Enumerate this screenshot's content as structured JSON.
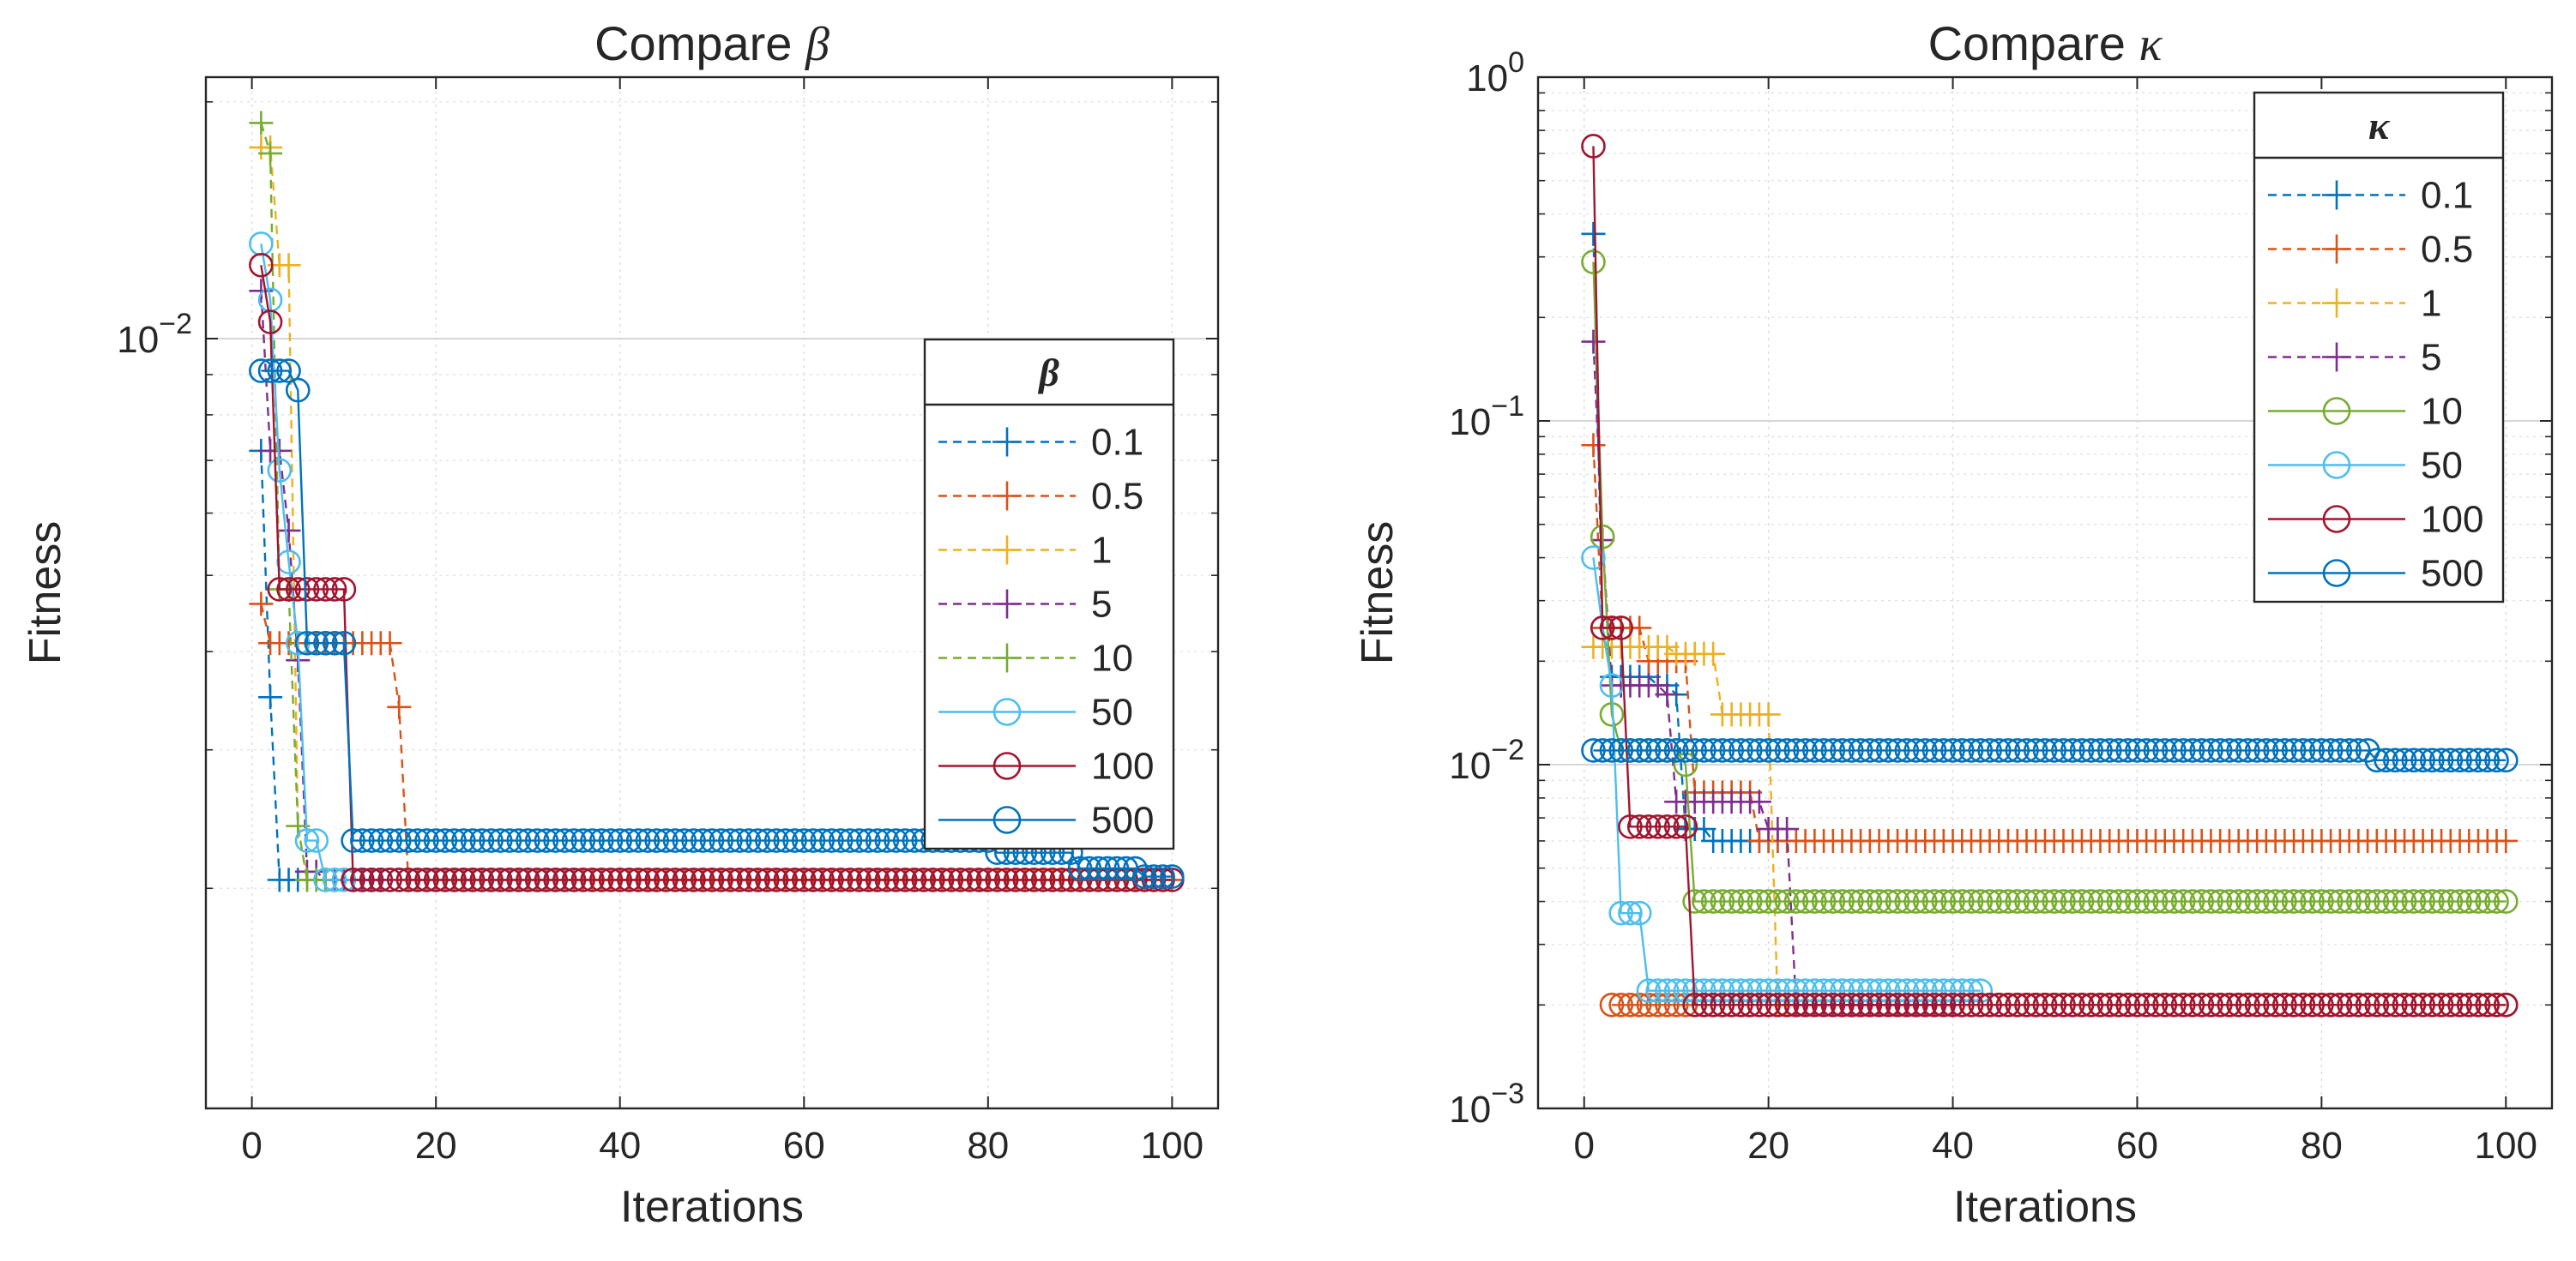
{
  "chart_data": [
    {
      "id": "beta",
      "type": "line",
      "title_prefix": "Compare ",
      "title_symbol": "β",
      "xlabel": "Iterations",
      "ylabel": "Fitness",
      "yscale": "log",
      "xlim": [
        -5,
        105
      ],
      "ylim": [
        0.00105,
        0.0215
      ],
      "xticks": [
        0,
        20,
        40,
        60,
        80,
        100
      ],
      "xtick_labels": [
        "0",
        "20",
        "40",
        "60",
        "80",
        "100"
      ],
      "yticks_major": [
        0.01
      ],
      "ytick_label_base": "10",
      "ytick_label_exp": "−2",
      "legend": {
        "title": "β",
        "placement": "right"
      },
      "series": [
        {
          "name": "0.1",
          "color": "#0072BD",
          "marker": "+",
          "dash": true,
          "steps": [
            [
              1,
              0.0072
            ],
            [
              2,
              0.0035
            ],
            [
              3,
              0.00205
            ],
            [
              5,
              0.00205
            ]
          ]
        },
        {
          "name": "0.5",
          "color": "#D95319",
          "marker": "+",
          "dash": true,
          "steps": [
            [
              1,
              0.0046
            ],
            [
              2,
              0.0041
            ],
            [
              16,
              0.0034
            ],
            [
              17,
              0.00205
            ],
            [
              100,
              0.00205
            ]
          ]
        },
        {
          "name": "1",
          "color": "#EDB120",
          "marker": "+",
          "dash": true,
          "steps": [
            [
              1,
              0.0175
            ],
            [
              3,
              0.0124
            ],
            [
              5,
              0.0024
            ],
            [
              6,
              0.00205
            ],
            [
              10,
              0.00205
            ]
          ]
        },
        {
          "name": "5",
          "color": "#7E2F8E",
          "marker": "+",
          "dash": true,
          "steps": [
            [
              1,
              0.0115
            ],
            [
              2,
              0.0072
            ],
            [
              4,
              0.0057
            ],
            [
              5,
              0.0039
            ],
            [
              6,
              0.0021
            ],
            [
              8,
              0.00205
            ],
            [
              14,
              0.00205
            ]
          ]
        },
        {
          "name": "10",
          "color": "#77AC30",
          "marker": "+",
          "dash": true,
          "steps": [
            [
              1,
              0.0188
            ],
            [
              2,
              0.0172
            ],
            [
              3,
              0.0048
            ],
            [
              5,
              0.0024
            ],
            [
              6,
              0.00205
            ],
            [
              8,
              0.00205
            ]
          ]
        },
        {
          "name": "50",
          "color": "#4DBEEE",
          "marker": "o",
          "dash": false,
          "steps": [
            [
              1,
              0.0132
            ],
            [
              2,
              0.0112
            ],
            [
              3,
              0.0068
            ],
            [
              4,
              0.0052
            ],
            [
              5,
              0.0041
            ],
            [
              6,
              0.0023
            ],
            [
              8,
              0.00205
            ],
            [
              35,
              0.00205
            ]
          ]
        },
        {
          "name": "100",
          "color": "#A2142F",
          "marker": "o",
          "dash": false,
          "steps": [
            [
              1,
              0.0124
            ],
            [
              2,
              0.0105
            ],
            [
              3,
              0.0048
            ],
            [
              10,
              0.0048
            ],
            [
              11,
              0.00205
            ],
            [
              100,
              0.00205
            ]
          ]
        },
        {
          "name": "500",
          "color": "#0072BD",
          "marker": "o",
          "dash": false,
          "steps": [
            [
              1,
              0.0091
            ],
            [
              5,
              0.0086
            ],
            [
              6,
              0.0041
            ],
            [
              10,
              0.0041
            ],
            [
              11,
              0.0023
            ],
            [
              80,
              0.0023
            ],
            [
              81,
              0.00222
            ],
            [
              89,
              0.00222
            ],
            [
              90,
              0.00212
            ],
            [
              96,
              0.00212
            ],
            [
              97,
              0.00207
            ],
            [
              100,
              0.00207
            ]
          ]
        }
      ]
    },
    {
      "id": "kappa",
      "type": "line",
      "title_prefix": "Compare ",
      "title_symbol": "κ",
      "xlabel": "Iterations",
      "ylabel": "Fitness",
      "yscale": "log",
      "xlim": [
        -5,
        105
      ],
      "ylim": [
        0.001,
        1
      ],
      "xticks": [
        0,
        20,
        40,
        60,
        80,
        100
      ],
      "xtick_labels": [
        "0",
        "20",
        "40",
        "60",
        "80",
        "100"
      ],
      "yticks_major": [
        0.001,
        0.01,
        0.1,
        1
      ],
      "ytick_labels": [
        {
          "base": "10",
          "exp": "−3"
        },
        {
          "base": "10",
          "exp": "−2"
        },
        {
          "base": "10",
          "exp": "−1"
        },
        {
          "base": "10",
          "exp": "0"
        }
      ],
      "legend": {
        "title": "κ",
        "placement": "top-right"
      },
      "series": [
        {
          "name": "0.1",
          "color": "#0072BD",
          "marker": "+",
          "dash": true,
          "steps": [
            [
              1,
              0.35
            ],
            [
              2,
              0.025
            ],
            [
              3,
              0.018
            ],
            [
              8,
              0.017
            ],
            [
              10,
              0.016
            ],
            [
              11,
              0.0065
            ],
            [
              14,
              0.006
            ],
            [
              21,
              0.006
            ]
          ]
        },
        {
          "name": "0.5",
          "color": "#D95319",
          "marker": "+",
          "dash": true,
          "steps": [
            [
              1,
              0.085
            ],
            [
              2,
              0.025
            ],
            [
              6,
              0.025
            ],
            [
              7,
              0.02
            ],
            [
              11,
              0.02
            ],
            [
              12,
              0.0083
            ],
            [
              18,
              0.0083
            ],
            [
              19,
              0.006
            ],
            [
              100,
              0.006
            ]
          ]
        },
        {
          "name": "1",
          "color": "#EDB120",
          "marker": "+",
          "dash": true,
          "steps": [
            [
              1,
              0.022
            ],
            [
              9,
              0.022
            ],
            [
              10,
              0.021
            ],
            [
              14,
              0.021
            ],
            [
              15,
              0.014
            ],
            [
              20,
              0.014
            ],
            [
              21,
              0.002
            ],
            [
              25,
              0.002
            ]
          ]
        },
        {
          "name": "5",
          "color": "#7E2F8E",
          "marker": "+",
          "dash": true,
          "steps": [
            [
              1,
              0.17
            ],
            [
              2,
              0.045
            ],
            [
              3,
              0.017
            ],
            [
              9,
              0.016
            ],
            [
              10,
              0.0078
            ],
            [
              19,
              0.0078
            ],
            [
              20,
              0.0065
            ],
            [
              22,
              0.0065
            ],
            [
              23,
              0.002
            ],
            [
              40,
              0.002
            ]
          ]
        },
        {
          "name": "10",
          "color": "#77AC30",
          "marker": "o",
          "dash": false,
          "steps": [
            [
              1,
              0.29
            ],
            [
              2,
              0.046
            ],
            [
              3,
              0.014
            ],
            [
              4,
              0.011
            ],
            [
              11,
              0.01
            ],
            [
              12,
              0.004
            ],
            [
              100,
              0.004
            ]
          ]
        },
        {
          "name": "50",
          "color": "#4DBEEE",
          "marker": "o",
          "dash": false,
          "steps": [
            [
              1,
              0.04
            ],
            [
              2,
              0.025
            ],
            [
              3,
              0.017
            ],
            [
              4,
              0.0037
            ],
            [
              6,
              0.0037
            ],
            [
              7,
              0.0022
            ],
            [
              43,
              0.0022
            ]
          ]
        },
        {
          "name": "100",
          "color": "#A2142F",
          "marker": "o",
          "dash": false,
          "steps": [
            [
              1,
              0.63
            ],
            [
              2,
              0.025
            ],
            [
              4,
              0.025
            ],
            [
              5,
              0.0066
            ],
            [
              11,
              0.0066
            ],
            [
              12,
              0.002
            ],
            [
              100,
              0.002
            ]
          ]
        },
        {
          "name": "500",
          "color": "#0072BD",
          "marker": "o",
          "dash": false,
          "steps": [
            [
              1,
              0.011
            ],
            [
              85,
              0.011
            ],
            [
              86,
              0.0103
            ],
            [
              100,
              0.0103
            ]
          ]
        }
      ],
      "extra_series": [
        {
          "name": "",
          "color": "#D95319",
          "marker": "o",
          "dash": false,
          "steps": [
            [
              3,
              0.002
            ],
            [
              100,
              0.002
            ]
          ]
        }
      ]
    }
  ]
}
